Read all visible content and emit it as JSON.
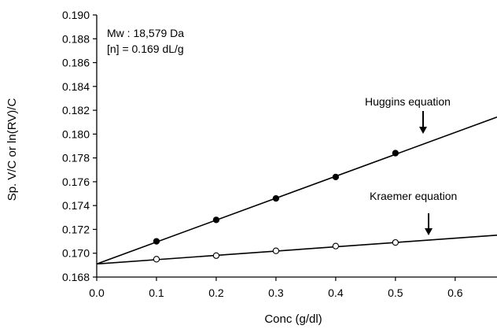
{
  "chart_data": {
    "type": "scatter",
    "xlabel": "Conc (g/dl)",
    "ylabel": "Sp. V/C or ln(RV)/C",
    "xlim": [
      0.0,
      0.67
    ],
    "ylim": [
      0.168,
      0.19
    ],
    "x_ticks": [
      "0.0",
      "0.1",
      "0.2",
      "0.3",
      "0.4",
      "0.5",
      "0.6"
    ],
    "y_ticks": [
      "0.168",
      "0.170",
      "0.172",
      "0.174",
      "0.176",
      "0.178",
      "0.180",
      "0.182",
      "0.184",
      "0.186",
      "0.188",
      "0.190"
    ],
    "grid": false,
    "annotation_lines": [
      "Mw : 18,579 Da",
      "[n] = 0.169 dL/g"
    ],
    "series": [
      {
        "name": "Huggins equation",
        "marker": "filled-circle",
        "x": [
          0.1,
          0.2,
          0.3,
          0.4,
          0.5
        ],
        "y": [
          0.171,
          0.1728,
          0.1746,
          0.1764,
          0.1784
        ],
        "fit_line": {
          "intercept": 0.1691,
          "slope": 0.0184
        }
      },
      {
        "name": "Kraemer equation",
        "marker": "open-circle",
        "x": [
          0.1,
          0.2,
          0.3,
          0.4,
          0.5
        ],
        "y": [
          0.1695,
          0.1698,
          0.1702,
          0.1706,
          0.1709
        ],
        "fit_line": {
          "intercept": 0.1691,
          "slope": 0.0036
        }
      }
    ]
  }
}
